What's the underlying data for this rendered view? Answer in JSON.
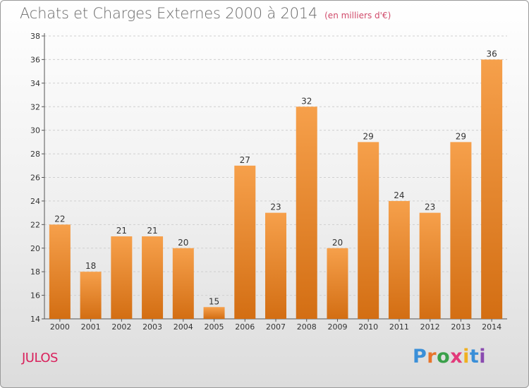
{
  "title": "Achats et Charges Externes 2000 à 2014",
  "subtitle": "(en milliers d'€)",
  "location": "JULOS",
  "logo": {
    "text": "Proxiti",
    "letters": [
      {
        "char": "P",
        "color": "#3a8fd8"
      },
      {
        "char": "r",
        "color": "#e8742a"
      },
      {
        "char": "o",
        "color": "#3aa04a"
      },
      {
        "char": "x",
        "color": "#e23a7a"
      },
      {
        "char": "i",
        "color": "#f0b020"
      },
      {
        "char": "t",
        "color": "#3a8fd8"
      },
      {
        "char": "i",
        "color": "#8a4ab0"
      }
    ]
  },
  "colors": {
    "bar_top": "#f6a04b",
    "bar_bottom": "#d36e13",
    "axis": "#555555",
    "grid": "#cfcfcf"
  },
  "chart_data": {
    "type": "bar",
    "title": "Achats et Charges Externes 2000 à 2014",
    "subtitle": "(en milliers d'€)",
    "categories": [
      "2000",
      "2001",
      "2002",
      "2003",
      "2004",
      "2005",
      "2006",
      "2007",
      "2008",
      "2009",
      "2010",
      "2011",
      "2012",
      "2013",
      "2014"
    ],
    "values": [
      22,
      18,
      21,
      21,
      20,
      15,
      27,
      23,
      32,
      20,
      29,
      24,
      23,
      29,
      36
    ],
    "ylim": [
      14,
      38
    ],
    "yticks": [
      14,
      16,
      18,
      20,
      22,
      24,
      26,
      28,
      30,
      32,
      34,
      36,
      38
    ],
    "grid": true,
    "data_labels": true
  }
}
